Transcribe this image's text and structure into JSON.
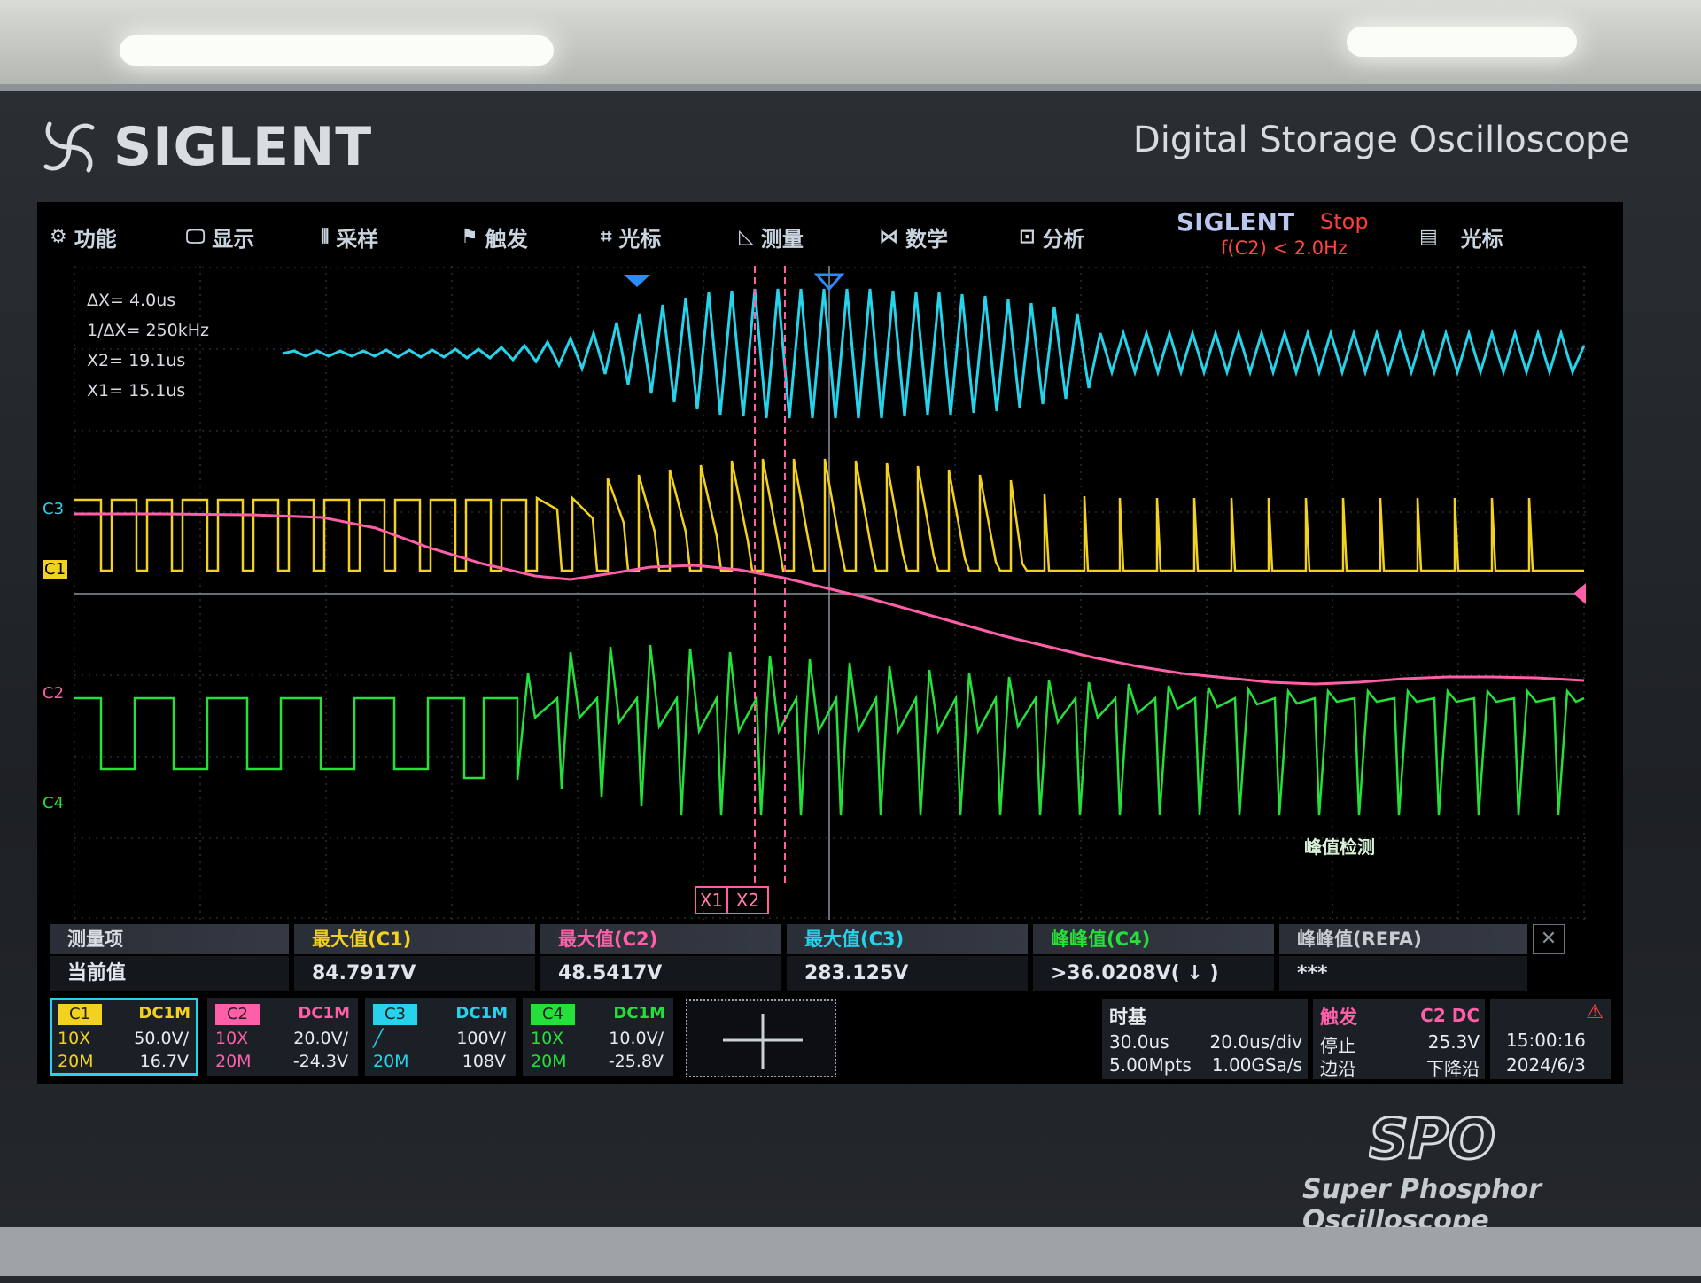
{
  "header": {
    "brand": "SIGLENT",
    "product_title": "Digital Storage Oscilloscope"
  },
  "menu": {
    "items": [
      {
        "label": "功能",
        "icon": "gear-icon"
      },
      {
        "label": "显示",
        "icon": "display-icon"
      },
      {
        "label": "采样",
        "icon": "sample-icon"
      },
      {
        "label": "触发",
        "icon": "flag-icon"
      },
      {
        "label": "光标",
        "icon": "cursor-icon"
      },
      {
        "label": "测量",
        "icon": "measure-icon"
      },
      {
        "label": "数学",
        "icon": "math-icon"
      },
      {
        "label": "分析",
        "icon": "analysis-icon"
      }
    ],
    "screen_brand": "SIGLENT",
    "run_state": "Stop",
    "trigger_condition": "f(C2) < 2.0Hz",
    "cursor_menu": {
      "label": "光标",
      "icon": "memory-icon"
    }
  },
  "cursor_readout": {
    "dx": "ΔX= 4.0us",
    "inv_dx": "1/ΔX= 250kHz",
    "x2": "X2= 19.1us",
    "x1": "X1= 15.1us"
  },
  "channel_markers": {
    "c3": "C3",
    "c1": "C1",
    "c2": "C2",
    "c4": "C4"
  },
  "cursors": {
    "x1": "X1",
    "x2": "X2"
  },
  "peak_detect": "峰值检测",
  "measurements": {
    "header_label": "测量项",
    "value_label": "当前值",
    "items": [
      {
        "name": "最大值(C1)",
        "value": "84.7917V",
        "color": "#f2d21e"
      },
      {
        "name": "最大值(C2)",
        "value": "48.5417V",
        "color": "#ff5fa8"
      },
      {
        "name": "最大值(C3)",
        "value": "283.125V",
        "color": "#27d3ea"
      },
      {
        "name": "峰峰值(C4)",
        "value": ">36.0208V( ↓ )",
        "color": "#25e03a"
      },
      {
        "name": "峰峰值(REFA)",
        "value": "***",
        "color": "#c8ccd0"
      }
    ]
  },
  "channels": [
    {
      "tag": "C1",
      "coupling": "DC1M",
      "probe": "10X",
      "scale": "50.0V/",
      "bw": "20M",
      "offset": "16.7V",
      "color": "#f2d21e"
    },
    {
      "tag": "C2",
      "coupling": "DC1M",
      "probe": "10X",
      "scale": "20.0V/",
      "bw": "20M",
      "offset": "-24.3V",
      "color": "#ff5fa8"
    },
    {
      "tag": "C3",
      "coupling": "DC1M",
      "probe": "",
      "scale": "100V/",
      "bw": "20M",
      "offset": "108V",
      "color": "#27d3ea"
    },
    {
      "tag": "C4",
      "coupling": "DC1M",
      "probe": "10X",
      "scale": "10.0V/",
      "bw": "20M",
      "offset": "-25.8V",
      "color": "#25e03a"
    }
  ],
  "timebase": {
    "title": "时基",
    "delay": "30.0us",
    "scale": "20.0us/div",
    "memory": "5.00Mpts",
    "sample_rate": "1.00GSa/s"
  },
  "trigger": {
    "title": "触发",
    "source": "C2 DC",
    "mode": "停止",
    "level": "25.3V",
    "type": "边沿",
    "slope": "下降沿"
  },
  "clock": {
    "time": "15:00:16",
    "date": "2024/6/3"
  },
  "footer": {
    "spo": "SPO",
    "spo_subtitle": "Super Phosphor Oscilloscope"
  }
}
